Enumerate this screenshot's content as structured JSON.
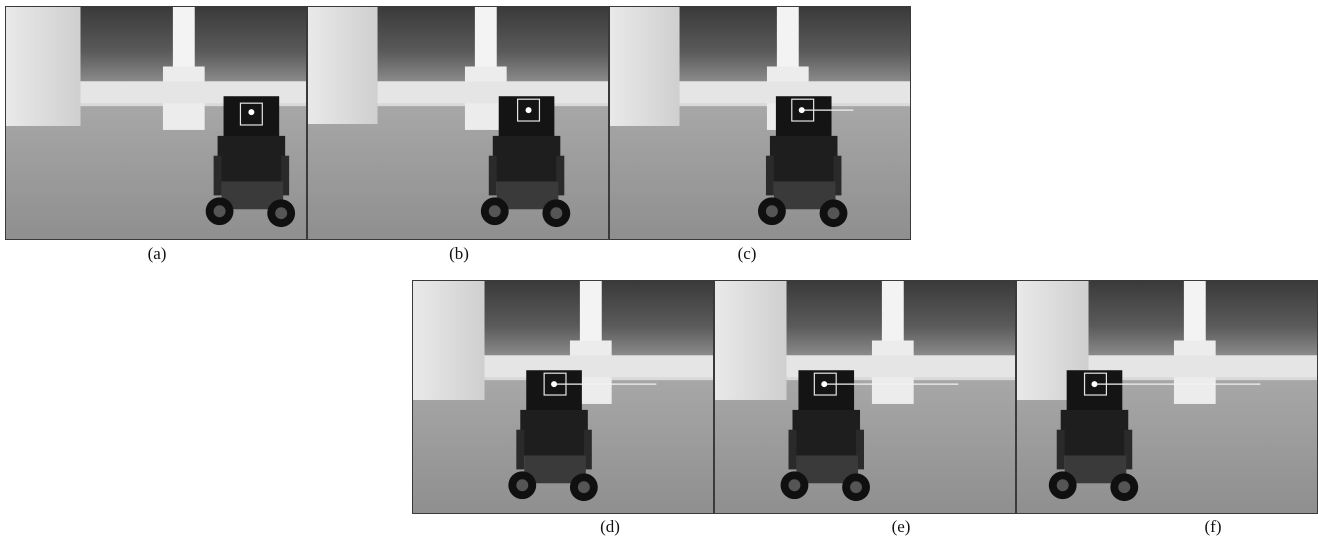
{
  "figure": {
    "panels": [
      {
        "caption": "(a)",
        "tracking_line": false
      },
      {
        "caption": "(b)",
        "tracking_line": false
      },
      {
        "caption": "(c)",
        "tracking_line": true
      },
      {
        "caption": "(d)",
        "tracking_line": true
      },
      {
        "caption": "(e)",
        "tracking_line": true
      },
      {
        "caption": "(f)",
        "tracking_line": true
      }
    ]
  }
}
